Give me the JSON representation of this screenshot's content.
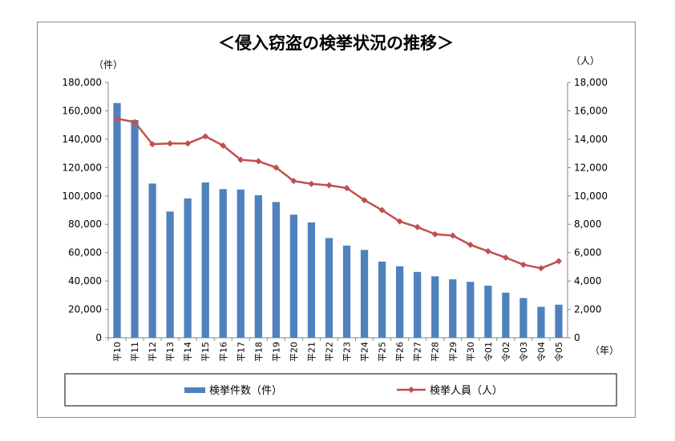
{
  "chart_data": {
    "type": "bar",
    "title": "＜侵入窃盗の検挙状況の推移＞",
    "left_unit": "（件）",
    "right_unit": "（人）",
    "x_unit": "（年）",
    "categories": [
      "平10",
      "平11",
      "平12",
      "平13",
      "平14",
      "平15",
      "平16",
      "平17",
      "平18",
      "平19",
      "平20",
      "平21",
      "平22",
      "平23",
      "平24",
      "平25",
      "平26",
      "平27",
      "平28",
      "平29",
      "平30",
      "令01",
      "令02",
      "令03",
      "令04",
      "令05"
    ],
    "y_left": {
      "ylim": [
        0,
        180000
      ],
      "ticks": [
        "0",
        "20,000",
        "40,000",
        "60,000",
        "80,000",
        "100,000",
        "120,000",
        "140,000",
        "160,000",
        "180,000"
      ]
    },
    "y_right": {
      "ylim": [
        0,
        18000
      ],
      "ticks": [
        "0",
        "2,000",
        "4,000",
        "6,000",
        "8,000",
        "10,000",
        "12,000",
        "14,000",
        "16,000",
        "18,000"
      ]
    },
    "series": [
      {
        "name": "検挙件数（件）",
        "type": "bar",
        "axis": "left",
        "color": "#4f81bd",
        "values": [
          165500,
          153500,
          108700,
          89000,
          98200,
          109500,
          104800,
          104500,
          100500,
          95700,
          86800,
          81300,
          70300,
          65000,
          61900,
          53700,
          50400,
          46400,
          43300,
          41200,
          39400,
          36700,
          31800,
          28000,
          21800,
          23300
        ]
      },
      {
        "name": "検挙人員（人）",
        "type": "line",
        "axis": "right",
        "color": "#c0504d",
        "values": [
          15450,
          15200,
          13650,
          13700,
          13700,
          14200,
          13550,
          12550,
          12450,
          12000,
          11050,
          10850,
          10750,
          10550,
          9700,
          9000,
          8200,
          7800,
          7300,
          7200,
          6550,
          6100,
          5650,
          5150,
          4900,
          5400
        ]
      }
    ],
    "grid": false,
    "legend_position": "bottom"
  }
}
